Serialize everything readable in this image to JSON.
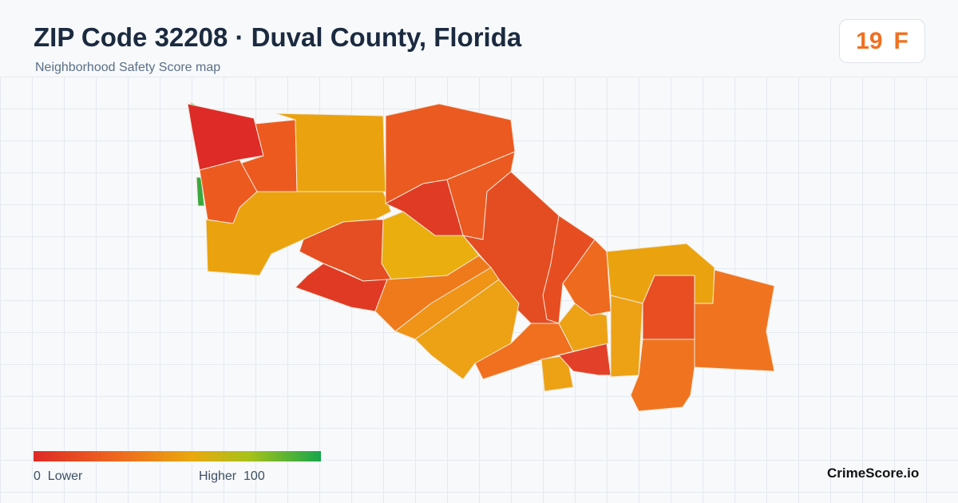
{
  "header": {
    "title": "ZIP Code 32208 · Duval County, Florida",
    "subtitle": "Neighborhood Safety Score map"
  },
  "score": {
    "value": 19,
    "grade": "F"
  },
  "legend": {
    "min": 0,
    "min_label": "Lower",
    "max_label": "Higher",
    "max": 100
  },
  "brand": "CrimeScore.io"
}
